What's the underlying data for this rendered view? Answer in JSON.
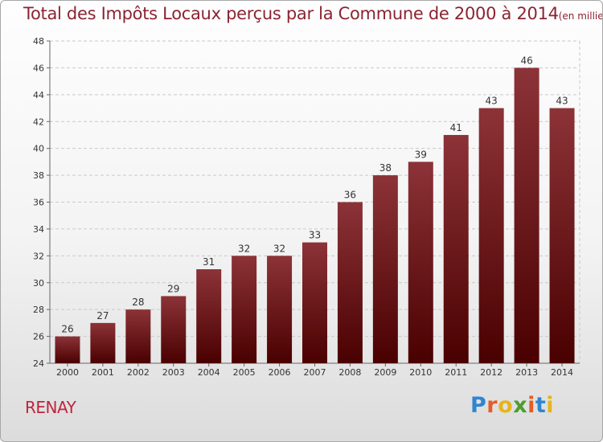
{
  "chart_data": {
    "type": "bar",
    "title": "Total des Impôts Locaux perçus par la Commune de 2000 à 2014",
    "unit": "(en milliers d'€)",
    "categories": [
      "2000",
      "2001",
      "2002",
      "2003",
      "2004",
      "2005",
      "2006",
      "2007",
      "2008",
      "2009",
      "2010",
      "2011",
      "2012",
      "2013",
      "2014"
    ],
    "values": [
      26,
      27,
      28,
      29,
      31,
      32,
      32,
      33,
      36,
      38,
      39,
      41,
      43,
      46,
      43
    ],
    "ylim": [
      24,
      48
    ],
    "yticks": [
      24,
      26,
      28,
      30,
      32,
      34,
      36,
      38,
      40,
      42,
      44,
      46,
      48
    ],
    "xlabel": "",
    "ylabel": "",
    "grid": true,
    "bar_color_top": "#8c3338",
    "bar_color_bottom": "#4a0000"
  },
  "commune": "RENAY",
  "brand": {
    "letters": [
      "P",
      "r",
      "o",
      "x",
      "i",
      "t",
      "i"
    ]
  }
}
